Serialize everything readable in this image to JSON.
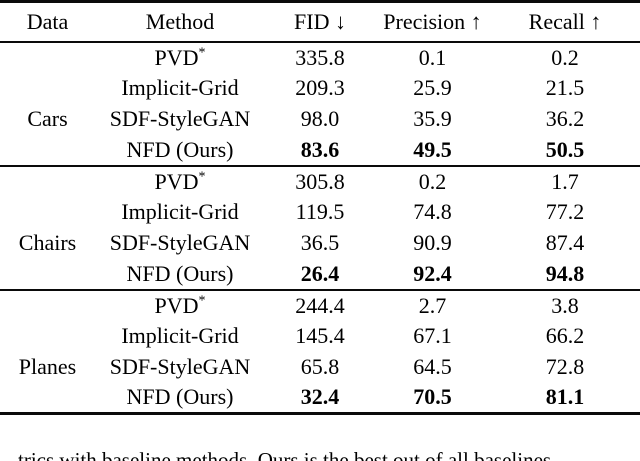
{
  "table": {
    "columns": [
      "Data",
      "Method",
      "FID ↓",
      "Precision ↑",
      "Recall ↑"
    ],
    "groups": [
      {
        "label": "Cars",
        "rows": [
          {
            "method": "PVD",
            "sup": "*",
            "fid": "335.8",
            "precision": "0.1",
            "recall": "0.2"
          },
          {
            "method": "Implicit-Grid",
            "sup": "",
            "fid": "209.3",
            "precision": "25.9",
            "recall": "21.5"
          },
          {
            "method": "SDF-StyleGAN",
            "sup": "",
            "fid": "98.0",
            "precision": "35.9",
            "recall": "36.2"
          },
          {
            "method": "NFD (Ours)",
            "sup": "",
            "fid": "83.6",
            "precision": "49.5",
            "recall": "50.5"
          }
        ]
      },
      {
        "label": "Chairs",
        "rows": [
          {
            "method": "PVD",
            "sup": "*",
            "fid": "305.8",
            "precision": "0.2",
            "recall": "1.7"
          },
          {
            "method": "Implicit-Grid",
            "sup": "",
            "fid": "119.5",
            "precision": "74.8",
            "recall": "77.2"
          },
          {
            "method": "SDF-StyleGAN",
            "sup": "",
            "fid": "36.5",
            "precision": "90.9",
            "recall": "87.4"
          },
          {
            "method": "NFD (Ours)",
            "sup": "",
            "fid": "26.4",
            "precision": "92.4",
            "recall": "94.8"
          }
        ]
      },
      {
        "label": "Planes",
        "rows": [
          {
            "method": "PVD",
            "sup": "*",
            "fid": "244.4",
            "precision": "2.7",
            "recall": "3.8"
          },
          {
            "method": "Implicit-Grid",
            "sup": "",
            "fid": "145.4",
            "precision": "67.1",
            "recall": "66.2"
          },
          {
            "method": "SDF-StyleGAN",
            "sup": "",
            "fid": "65.8",
            "precision": "64.5",
            "recall": "72.8"
          },
          {
            "method": "NFD (Ours)",
            "sup": "",
            "fid": "32.4",
            "precision": "70.5",
            "recall": "81.1"
          }
        ]
      }
    ]
  },
  "caption_fragment": "trics with baseline methods. Ours is the best out of all baselines"
}
